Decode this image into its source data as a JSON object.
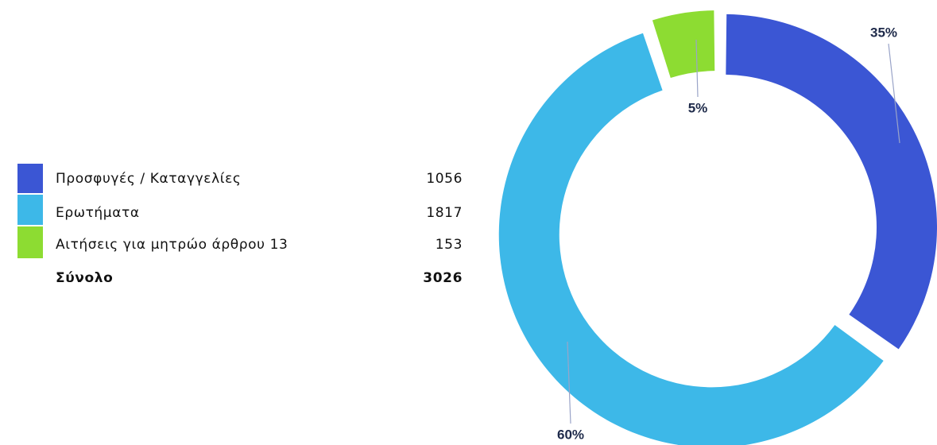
{
  "chart_data": {
    "type": "donut",
    "categories": [
      "Προσφυγές / Καταγγελίες",
      "Ερωτήματα",
      "Αιτήσεις για μητρώο άρθρου 13"
    ],
    "values": [
      1056,
      1817,
      153
    ],
    "value_labels": [
      "35%",
      "60%",
      "5%"
    ],
    "colors": [
      "#3b56d4",
      "#3db8e8",
      "#8ddc32"
    ],
    "total_label": "Σύνολο",
    "total": 3026
  }
}
